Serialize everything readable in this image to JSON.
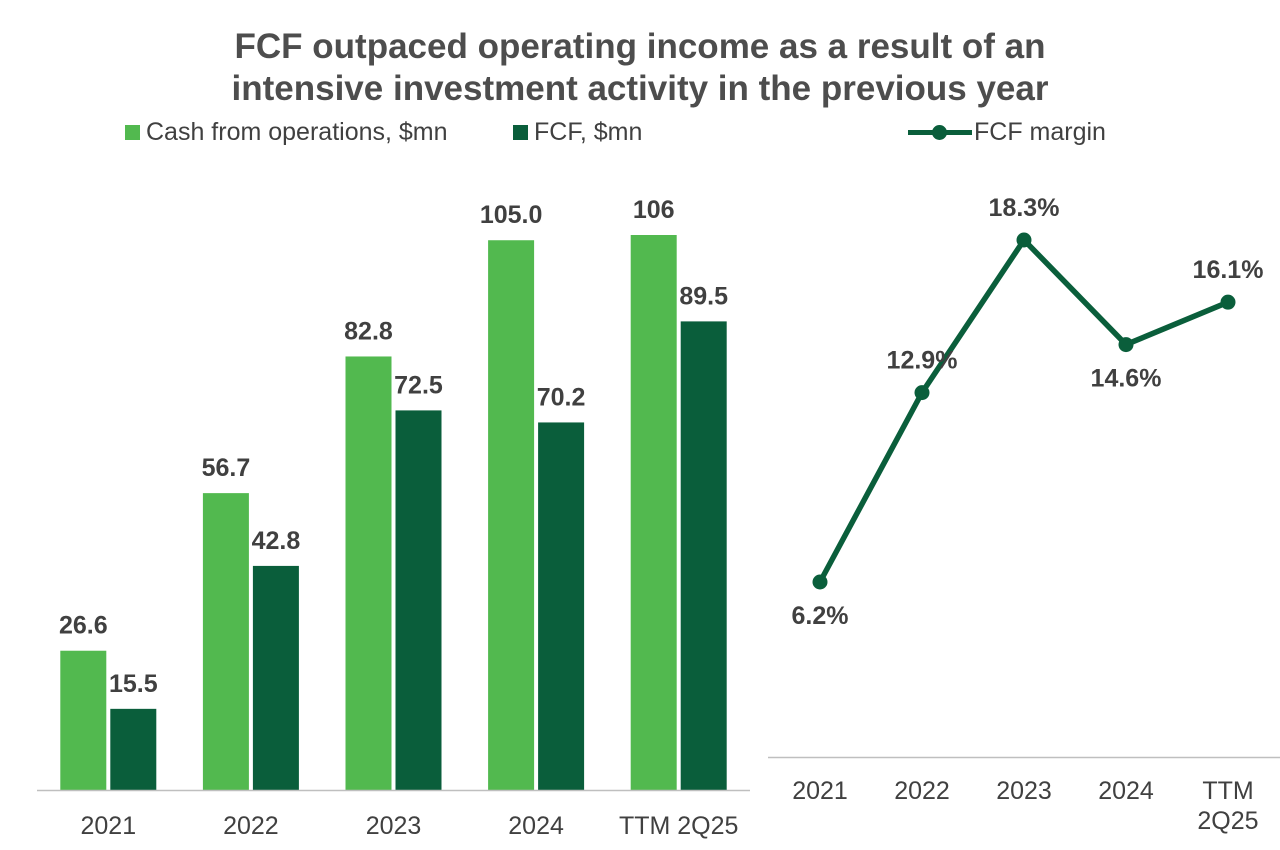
{
  "title_lines": [
    "FCF outpaced operating income as a result of an",
    "intensive investment activity in the previous year"
  ],
  "colors": {
    "cash_ops": "#52b94f",
    "fcf": "#0a5e3b",
    "margin_line": "#0a5e3b",
    "axis": "#bfbfbf",
    "text": "#404040"
  },
  "legend": {
    "cash_ops": "Cash from operations, $mn",
    "fcf": "FCF, $mn",
    "margin": "FCF margin"
  },
  "chart_data": [
    {
      "type": "bar",
      "categories": [
        "2021",
        "2022",
        "2023",
        "2024",
        "TTM 2Q25"
      ],
      "series": [
        {
          "name": "Cash from operations, $mn",
          "values": [
            26.6,
            56.7,
            82.8,
            105.0,
            106
          ],
          "labels": [
            "26.6",
            "56.7",
            "82.8",
            "105.0",
            "106"
          ]
        },
        {
          "name": "FCF, $mn",
          "values": [
            15.5,
            42.8,
            72.5,
            70.2,
            89.5
          ],
          "labels": [
            "15.5",
            "42.8",
            "72.5",
            "70.2",
            "89.5"
          ]
        }
      ],
      "ylim": [
        0,
        106
      ],
      "xlabel": "",
      "ylabel": ""
    },
    {
      "type": "line",
      "categories": [
        "2021",
        "2022",
        "2023",
        "2024",
        "TTM 2Q25"
      ],
      "category_lines": [
        [
          "2021"
        ],
        [
          "2022"
        ],
        [
          "2023"
        ],
        [
          "2024"
        ],
        [
          "TTM",
          "2Q25"
        ]
      ],
      "series": [
        {
          "name": "FCF margin",
          "values": [
            6.2,
            12.9,
            18.3,
            14.6,
            16.1
          ],
          "labels": [
            "6.2%",
            "12.9%",
            "18.3%",
            "14.6%",
            "16.1%"
          ]
        }
      ],
      "label_positions": [
        "below",
        "above",
        "above",
        "below",
        "above"
      ],
      "ylim": [
        0,
        20
      ],
      "xlabel": "",
      "ylabel": ""
    }
  ]
}
